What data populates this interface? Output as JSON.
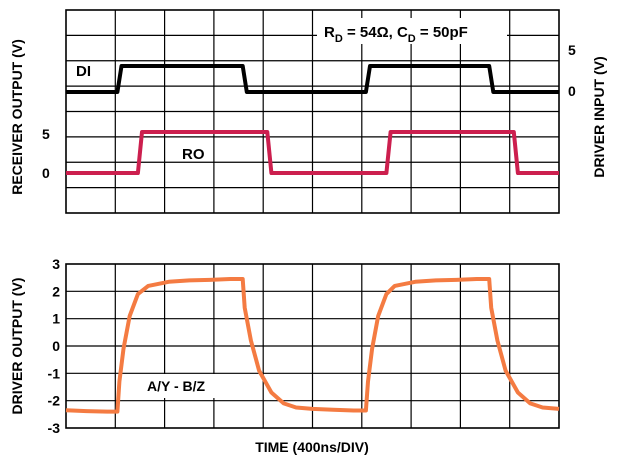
{
  "chart_data": [
    {
      "type": "line",
      "panel": "top",
      "title": "",
      "annotation": "R_D = 54Ω, C_D = 50pF",
      "annotation_parts": {
        "r_main": "R",
        "r_sub": "D",
        "r_val": " = 54Ω, ",
        "c_main": "C",
        "c_sub": "D",
        "c_val": " = 50pF"
      },
      "xlabel": "TIME (400ns/DIV)",
      "x_divisions": 10,
      "y_divisions": 8,
      "grid": true,
      "left_axis": {
        "label": "RECEIVER OUTPUT (V)",
        "ticks": [
          {
            "label": "5",
            "value": 5
          },
          {
            "label": "0",
            "value": 0
          }
        ]
      },
      "right_axis": {
        "label": "DRIVER INPUT (V)",
        "ticks": [
          {
            "label": "5",
            "value": 5
          },
          {
            "label": "0",
            "value": 0
          }
        ]
      },
      "series": [
        {
          "name": "DI",
          "color": "#000000",
          "axis": "right",
          "x": [
            0,
            1.25,
            1.35,
            4.3,
            4.4,
            7.3,
            7.4,
            10.3,
            10.4,
            12.0
          ],
          "y": [
            0,
            0,
            5,
            5,
            0,
            0,
            5,
            5,
            0,
            0
          ]
        },
        {
          "name": "RO",
          "color": "#cc1f4e",
          "axis": "left",
          "x": [
            0,
            1.75,
            1.85,
            4.9,
            5.0,
            7.8,
            7.9,
            10.9,
            11.0,
            12.0
          ],
          "y": [
            0,
            0,
            5,
            5,
            0,
            0,
            5,
            5,
            0,
            0
          ]
        }
      ]
    },
    {
      "type": "line",
      "panel": "bottom",
      "title": "",
      "xlabel": "TIME (400ns/DIV)",
      "ylabel": "DRIVER OUTPUT (V)",
      "ylim": [
        -3,
        3
      ],
      "y_ticks": [
        "3",
        "2",
        "1",
        "0",
        "-1",
        "-2",
        "-3"
      ],
      "grid": true,
      "series": [
        {
          "name": "A/Y - B/Z",
          "color": "#f47b42",
          "x": [
            0,
            0.5,
            1.0,
            1.25,
            1.3,
            1.4,
            1.55,
            1.75,
            2.0,
            2.5,
            3.0,
            3.5,
            4.0,
            4.3,
            4.35,
            4.5,
            4.7,
            5.0,
            5.3,
            5.6,
            6.0,
            6.5,
            7.0,
            7.3,
            7.35,
            7.45,
            7.6,
            7.8,
            8.0,
            8.5,
            9.0,
            9.5,
            10.0,
            10.3,
            10.35,
            10.5,
            10.7,
            11.0,
            11.3,
            11.6,
            12.0
          ],
          "y": [
            -2.35,
            -2.38,
            -2.4,
            -2.4,
            -1.3,
            -0.1,
            1.1,
            1.9,
            2.2,
            2.35,
            2.4,
            2.42,
            2.45,
            2.45,
            1.4,
            0.2,
            -0.9,
            -1.7,
            -2.1,
            -2.25,
            -2.3,
            -2.33,
            -2.36,
            -2.36,
            -1.3,
            -0.1,
            1.1,
            1.9,
            2.2,
            2.35,
            2.4,
            2.42,
            2.45,
            2.45,
            1.4,
            0.2,
            -0.9,
            -1.7,
            -2.1,
            -2.25,
            -2.3
          ]
        }
      ]
    }
  ]
}
